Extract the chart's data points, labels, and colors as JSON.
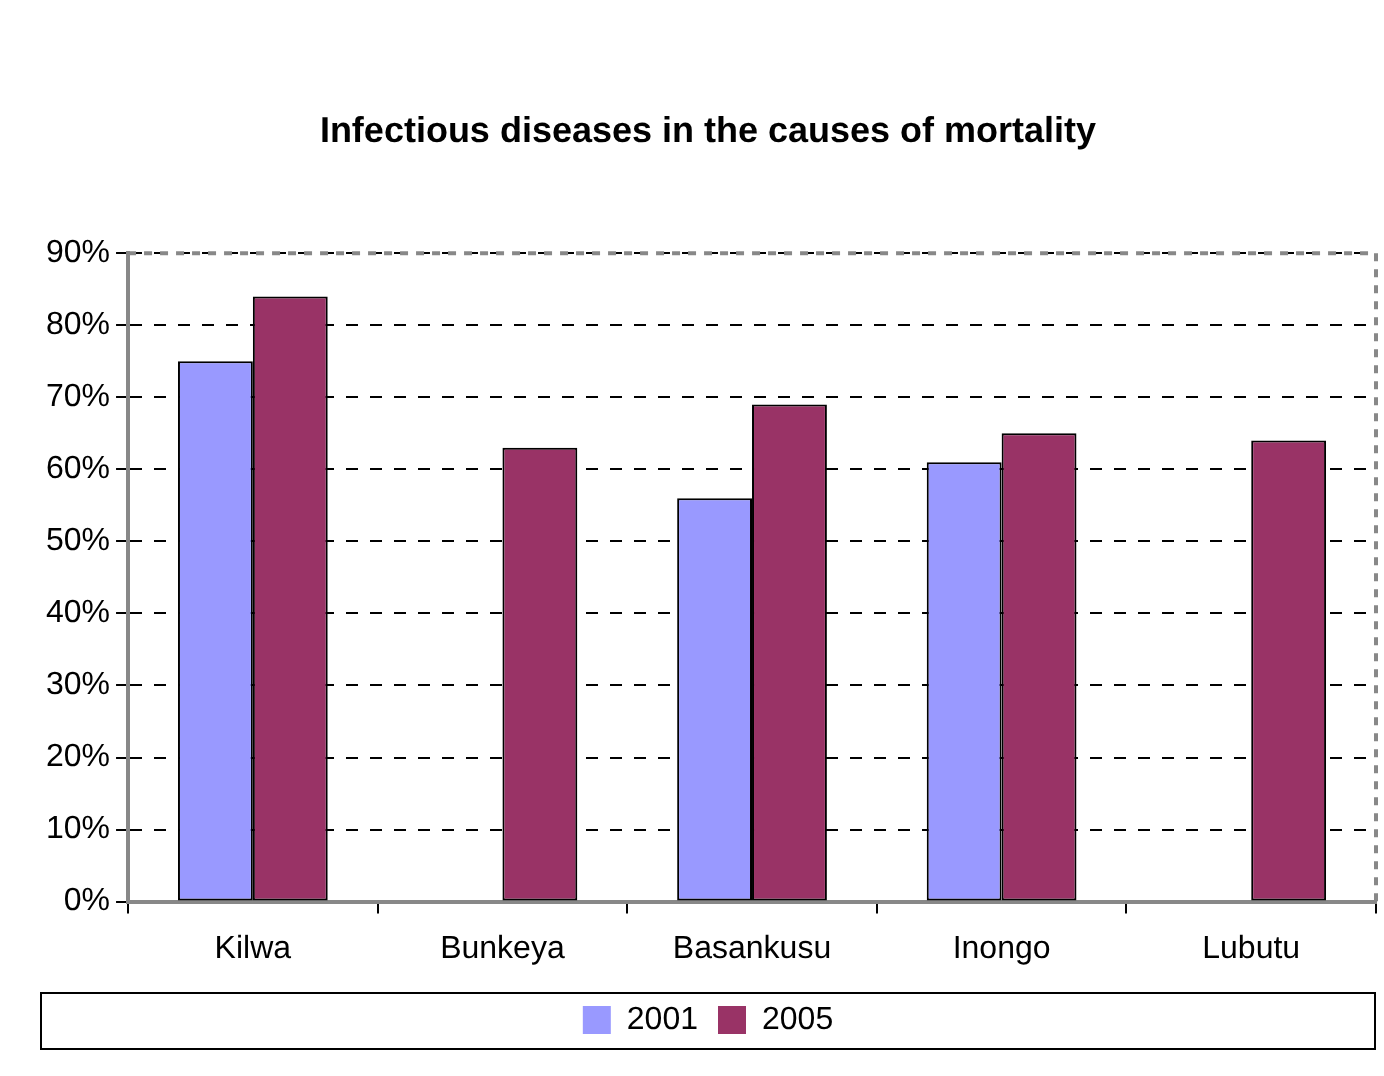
{
  "chart_data": {
    "type": "bar",
    "title": "Infectious diseases in the causes of mortality",
    "categories": [
      "Kilwa",
      "Bunkeya",
      "Basankusu",
      "Inongo",
      "Lubutu"
    ],
    "series": [
      {
        "name": "2001",
        "color": "#9999ff",
        "values": [
          75,
          null,
          56,
          61,
          null
        ]
      },
      {
        "name": "2005",
        "color": "#993366",
        "values": [
          84,
          63,
          69,
          65,
          64
        ]
      }
    ],
    "ylim": [
      0,
      90
    ],
    "yticks": [
      {
        "value": 0,
        "label": "0%"
      },
      {
        "value": 10,
        "label": "10%"
      },
      {
        "value": 20,
        "label": "20%"
      },
      {
        "value": 30,
        "label": "30%"
      },
      {
        "value": 40,
        "label": "40%"
      },
      {
        "value": 50,
        "label": "50%"
      },
      {
        "value": 60,
        "label": "60%"
      },
      {
        "value": 70,
        "label": "70%"
      },
      {
        "value": 80,
        "label": "80%"
      },
      {
        "value": 90,
        "label": "90%"
      }
    ],
    "grid": "y",
    "legend": "bottom"
  }
}
